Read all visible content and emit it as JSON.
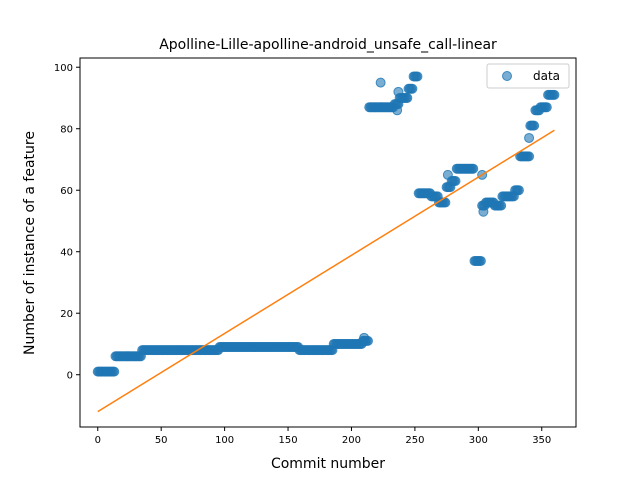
{
  "chart_data": {
    "type": "scatter",
    "title": "Apolline-Lille-apolline-android_unsafe_call-linear",
    "xlabel": "Commit number",
    "ylabel": "Number of instance of a feature",
    "xlim": [
      -14,
      377
    ],
    "ylim": [
      -17,
      103
    ],
    "xticks": [
      0,
      50,
      100,
      150,
      200,
      250,
      300,
      350
    ],
    "yticks": [
      0,
      20,
      40,
      60,
      80,
      100
    ],
    "legend": {
      "position": "top-right",
      "entries": [
        "data"
      ]
    },
    "grid": false,
    "colors": {
      "points": "#1f77b4",
      "fit_line": "#ff7f0e"
    },
    "runs": [
      [
        0,
        13,
        1
      ],
      [
        14,
        34,
        6
      ],
      [
        35,
        95,
        8
      ],
      [
        96,
        158,
        9
      ],
      [
        159,
        185,
        8
      ],
      [
        186,
        208,
        10
      ],
      [
        209,
        213,
        11
      ],
      [
        214,
        233,
        87
      ],
      [
        234,
        237,
        88
      ],
      [
        238,
        244,
        90
      ],
      [
        245,
        248,
        93
      ],
      [
        249,
        252,
        97
      ],
      [
        253,
        262,
        59
      ],
      [
        263,
        268,
        58
      ],
      [
        269,
        274,
        56
      ],
      [
        275,
        278,
        61
      ],
      [
        279,
        282,
        63
      ],
      [
        283,
        296,
        67
      ],
      [
        297,
        302,
        37
      ],
      [
        303,
        305,
        55
      ],
      [
        306,
        312,
        56
      ],
      [
        313,
        318,
        55
      ],
      [
        319,
        328,
        58
      ],
      [
        329,
        332,
        60
      ],
      [
        333,
        340,
        71
      ],
      [
        341,
        344,
        81
      ],
      [
        345,
        348,
        86
      ],
      [
        349,
        354,
        87
      ],
      [
        355,
        360,
        91
      ]
    ],
    "extra_points": [
      [
        210,
        12
      ],
      [
        223,
        95
      ],
      [
        236,
        86
      ],
      [
        237,
        92
      ],
      [
        276,
        65
      ],
      [
        303,
        65
      ],
      [
        304,
        53
      ],
      [
        340,
        77
      ]
    ],
    "fit_line": {
      "x": [
        0,
        360
      ],
      "y": [
        -12,
        79.5
      ]
    }
  }
}
